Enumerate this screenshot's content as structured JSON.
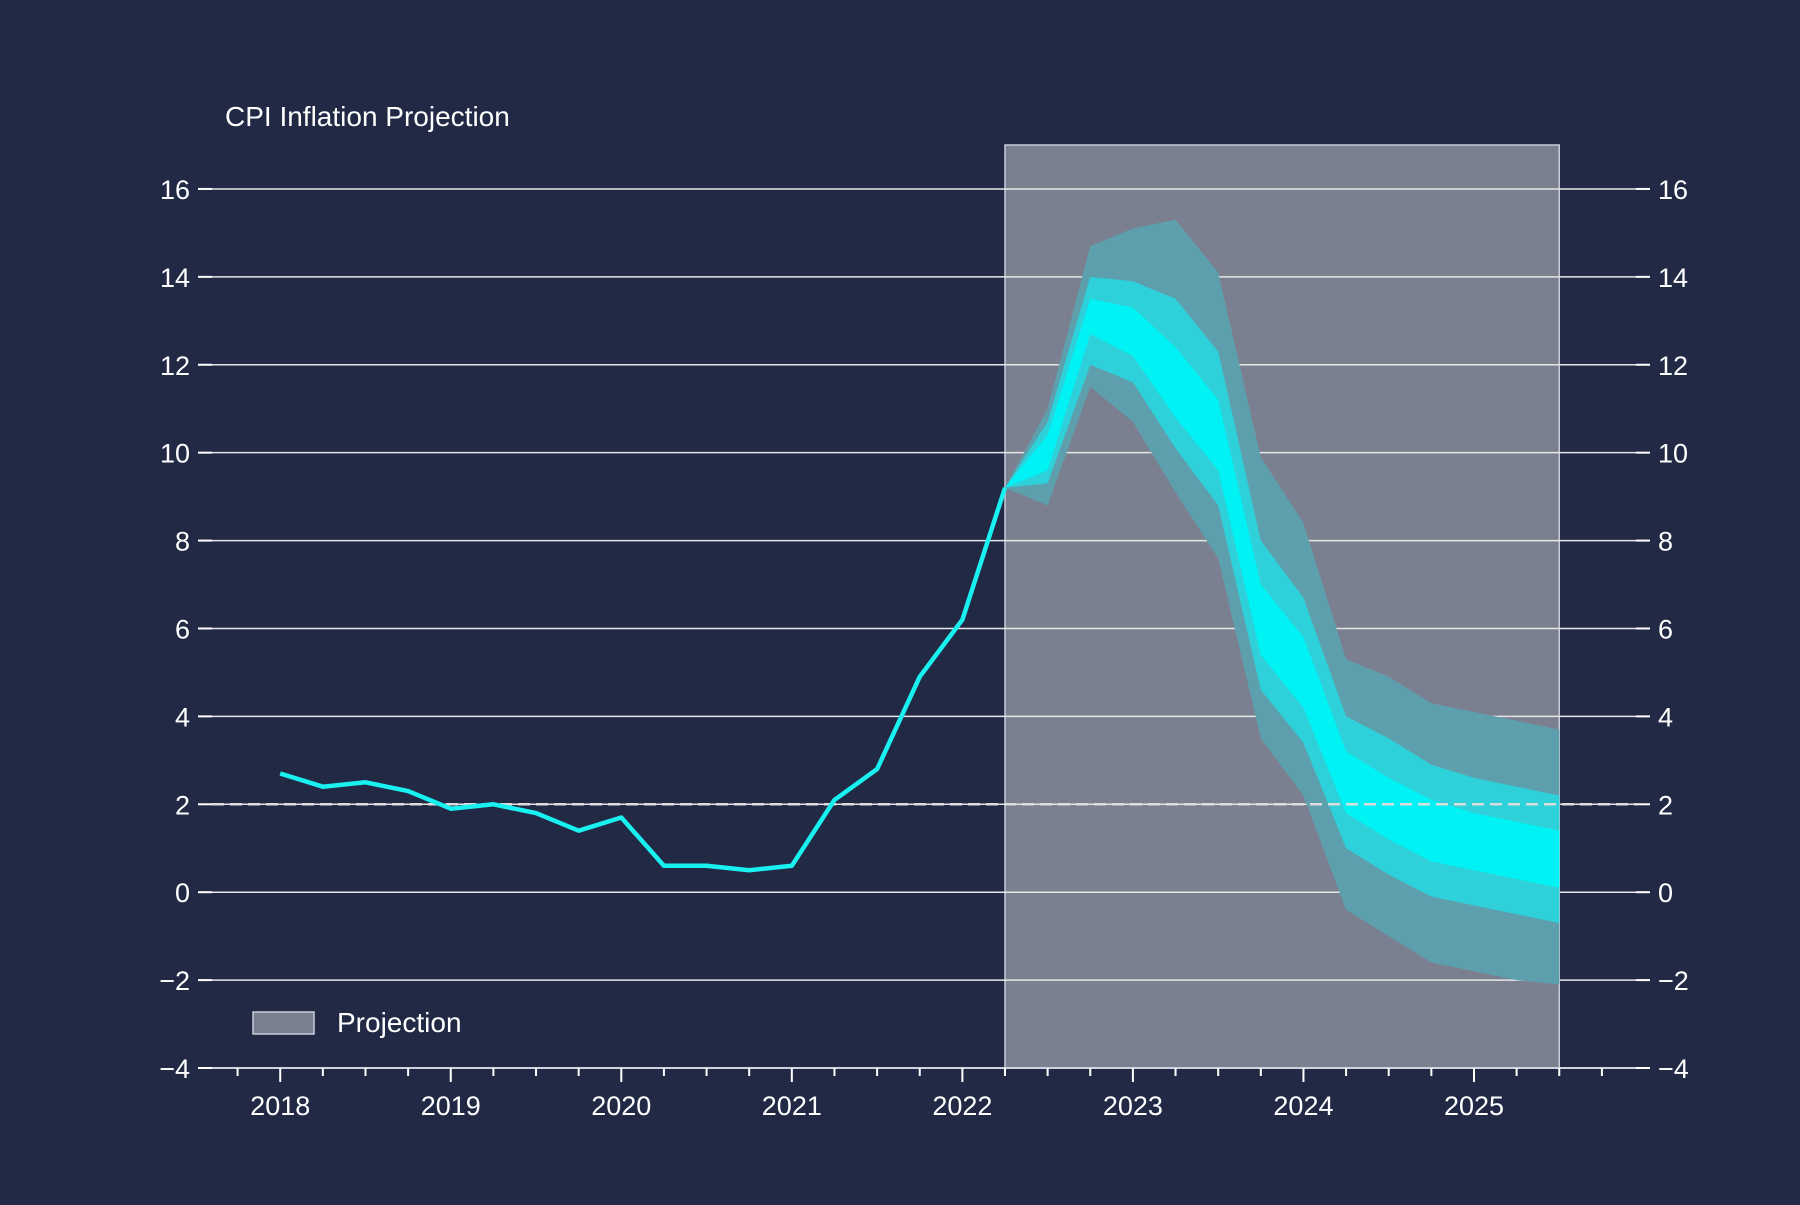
{
  "chart_data": {
    "type": "line",
    "title": "CPI Inflation Projection",
    "xlabel": "",
    "ylabel": "",
    "ylim": [
      -4,
      17
    ],
    "yticks": [
      -4,
      -2,
      0,
      2,
      4,
      6,
      8,
      10,
      12,
      14,
      16
    ],
    "ytick_labels": [
      "−4",
      "−2",
      "0",
      "2",
      "4",
      "6",
      "8",
      "10",
      "12",
      "14",
      "16"
    ],
    "xlim": [
      2017.6,
      2025.95
    ],
    "xticks": [
      2018,
      2019,
      2020,
      2021,
      2022,
      2023,
      2024,
      2025
    ],
    "xtick_labels": [
      "2018",
      "2019",
      "2020",
      "2021",
      "2022",
      "2023",
      "2024",
      "2025"
    ],
    "grid": "horizontal",
    "target_line": {
      "value": 2,
      "style": "dashed"
    },
    "legend": {
      "position": "bottom-left",
      "label": "Projection"
    },
    "projection_region": {
      "x_start": 2022.25,
      "x_end": 2025.5,
      "y_top": 17
    },
    "colors": {
      "background": "#222945",
      "line": "#19f0f0",
      "band_inner": "#00f2f5",
      "band_middle": "#2ed1d9",
      "band_outer": "#5e9fad",
      "projection_shade": "#7b8091",
      "grid": "#e6e6e6",
      "text": "#ffffff"
    },
    "series": [
      {
        "x": [
          2018.0,
          2018.25,
          2018.5,
          2018.75,
          2019.0,
          2019.25,
          2019.5,
          2019.75,
          2020.0,
          2020.25,
          2020.5,
          2020.75,
          2021.0,
          2021.25,
          2021.5,
          2021.75,
          2022.0,
          2022.25
        ],
        "values": [
          2.7,
          2.4,
          2.5,
          2.3,
          1.9,
          2.0,
          1.8,
          1.4,
          1.7,
          0.6,
          0.6,
          0.5,
          0.6,
          2.1,
          2.8,
          4.9,
          6.2,
          9.2
        ]
      }
    ],
    "fan_chart": {
      "x": [
        2022.25,
        2022.5,
        2022.75,
        2023.0,
        2023.25,
        2023.5,
        2023.75,
        2024.0,
        2024.25,
        2024.5,
        2024.75,
        2025.0,
        2025.25,
        2025.5
      ],
      "bands": [
        {
          "level": "outer",
          "upper": [
            9.2,
            11.0,
            14.7,
            15.1,
            15.3,
            14.1,
            9.9,
            8.4,
            5.3,
            4.9,
            4.3,
            4.1,
            3.9,
            3.7
          ],
          "lower": [
            9.2,
            8.8,
            11.5,
            10.7,
            9.1,
            7.6,
            3.5,
            2.2,
            -0.4,
            -1.0,
            -1.6,
            -1.8,
            -2.0,
            -2.1
          ]
        },
        {
          "level": "middle",
          "upper": [
            9.2,
            10.7,
            14.0,
            13.9,
            13.5,
            12.3,
            8.0,
            6.7,
            4.0,
            3.5,
            2.9,
            2.6,
            2.4,
            2.2
          ],
          "lower": [
            9.2,
            9.3,
            12.0,
            11.6,
            10.1,
            8.8,
            4.6,
            3.4,
            1.0,
            0.4,
            -0.1,
            -0.3,
            -0.5,
            -0.7
          ]
        },
        {
          "level": "inner",
          "upper": [
            9.2,
            10.4,
            13.5,
            13.3,
            12.4,
            11.2,
            7.0,
            5.8,
            3.2,
            2.6,
            2.1,
            1.8,
            1.6,
            1.4
          ],
          "lower": [
            9.2,
            9.6,
            12.7,
            12.2,
            10.8,
            9.6,
            5.4,
            4.2,
            1.8,
            1.2,
            0.7,
            0.5,
            0.3,
            0.1
          ]
        }
      ]
    }
  }
}
